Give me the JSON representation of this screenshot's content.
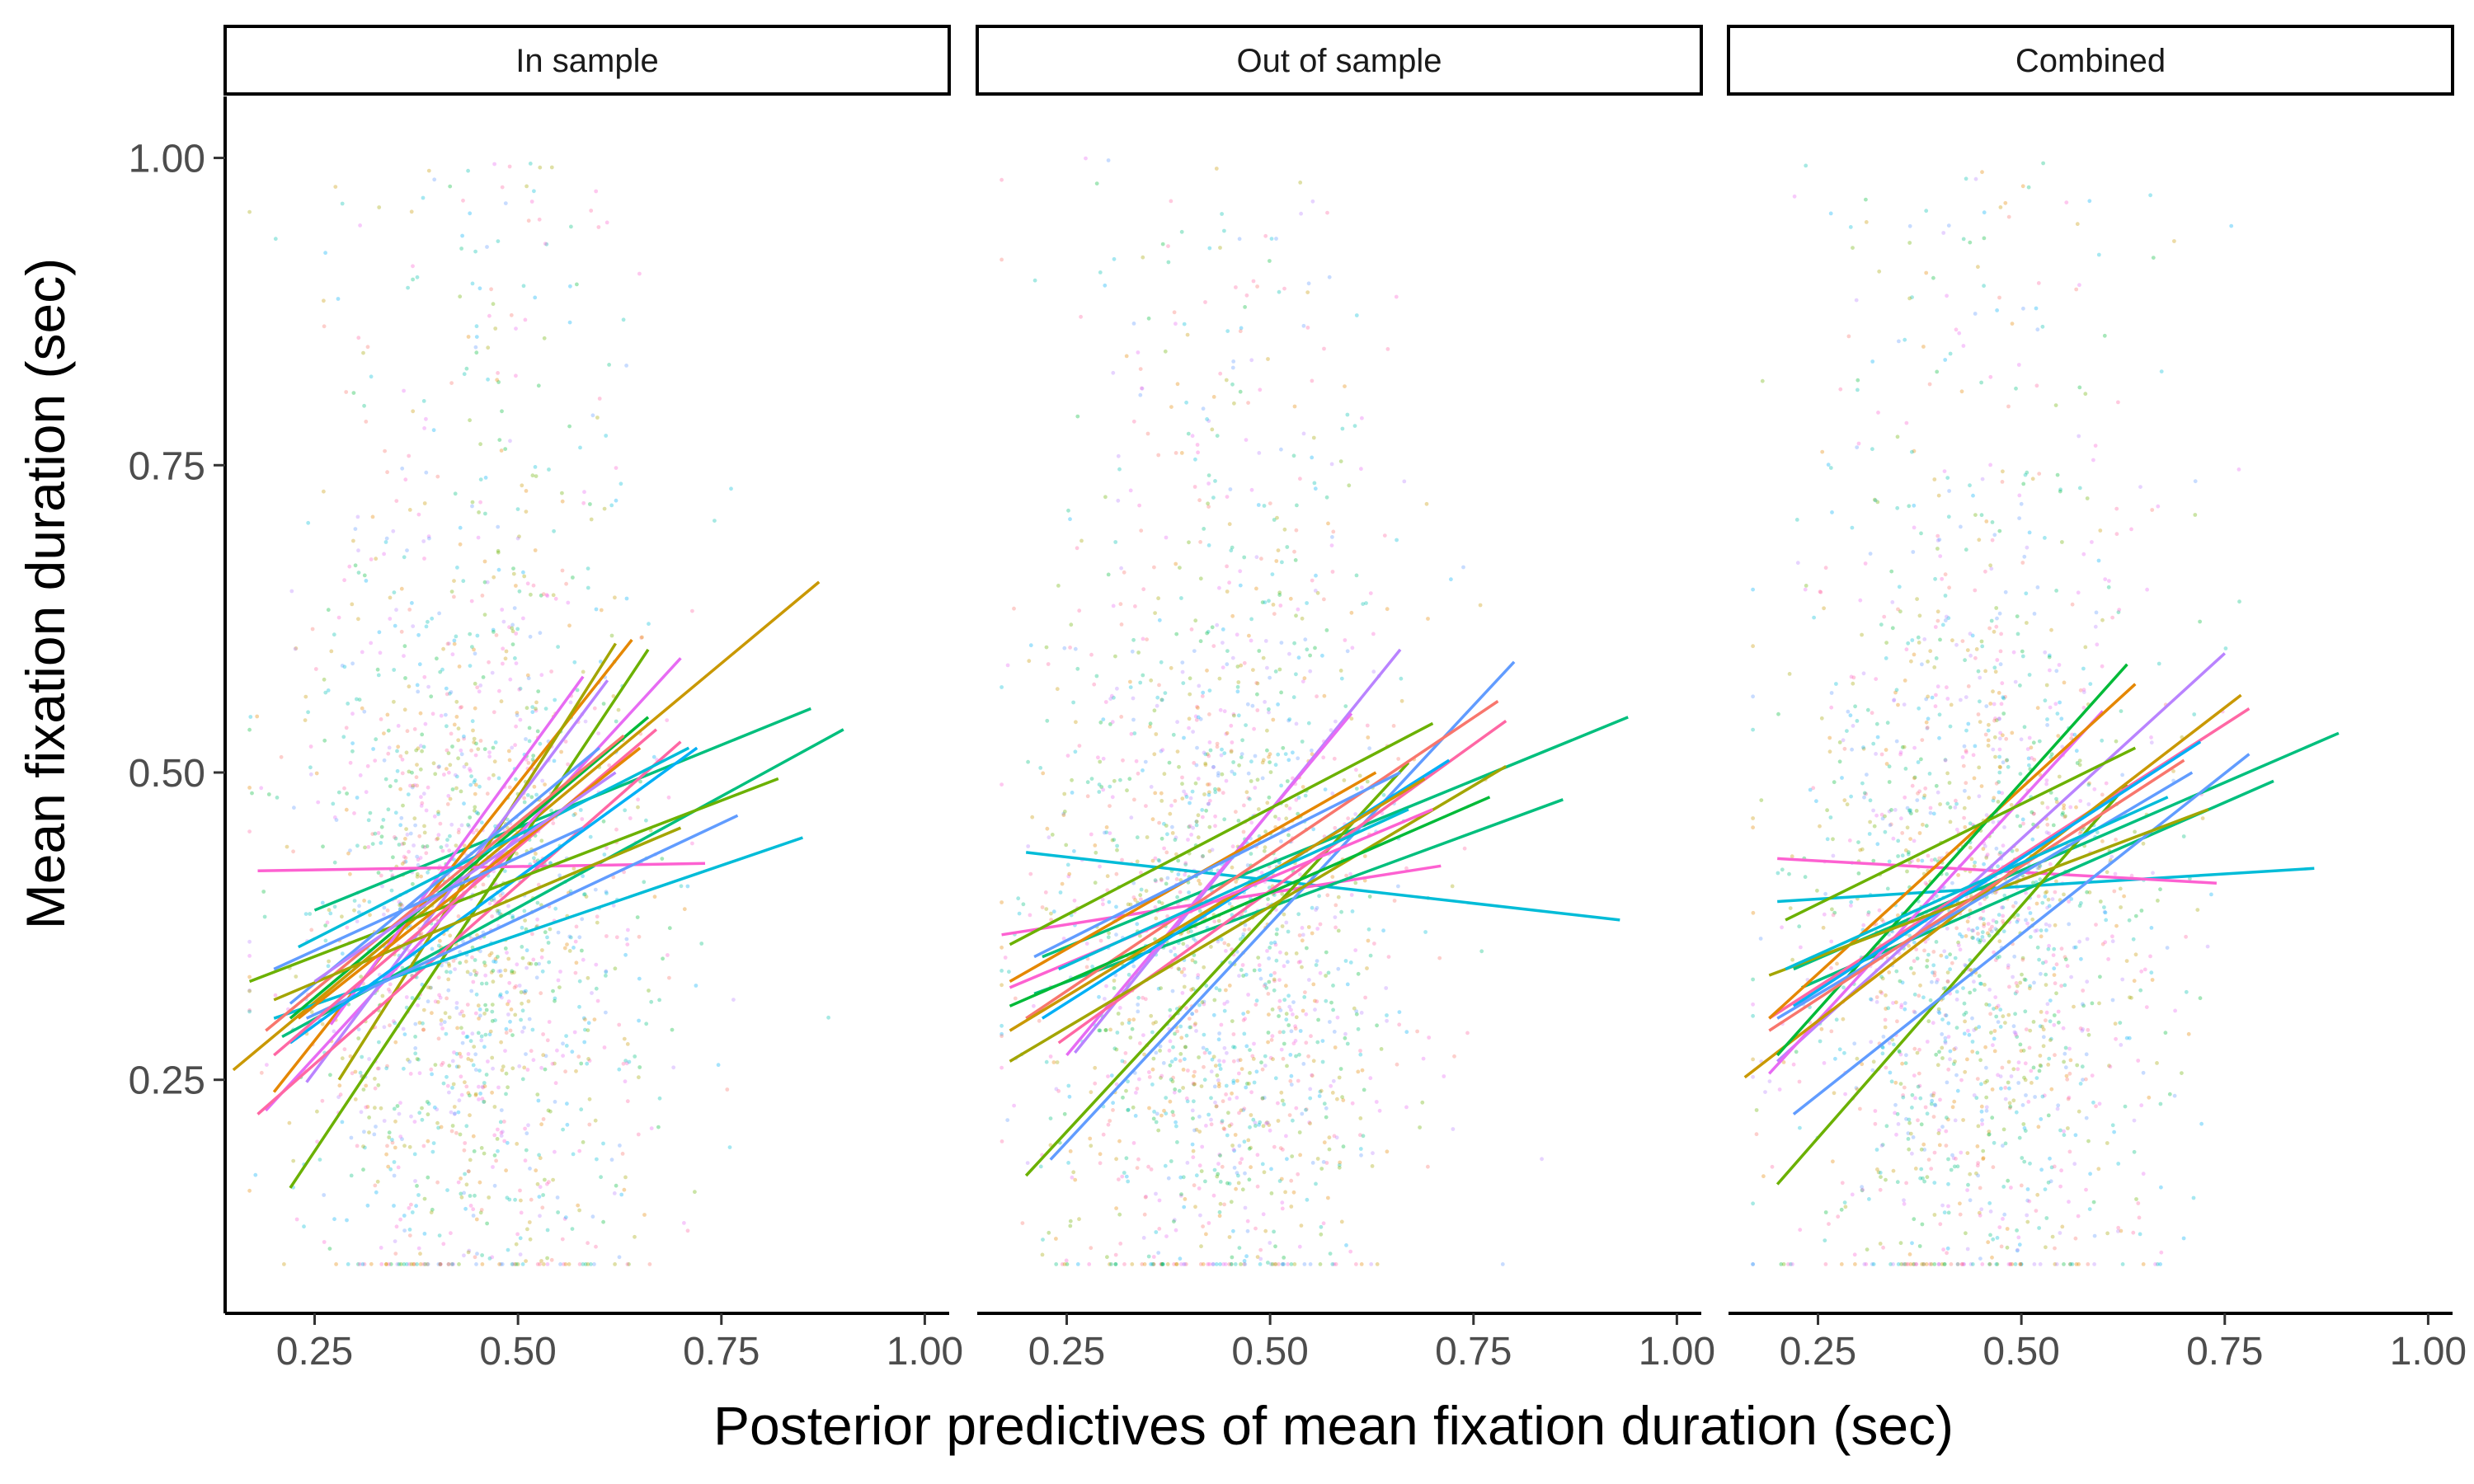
{
  "chart_data": {
    "type": "scatter",
    "xlabel": "Posterior predictives of mean fixation duration (sec)",
    "ylabel": "Mean fixation duration (sec)",
    "xlim": [
      0.14,
      1.03
    ],
    "ylim": [
      0.06,
      1.05
    ],
    "x_ticks": [
      "0.25",
      "0.50",
      "0.75",
      "1.00"
    ],
    "x_tick_values": [
      0.25,
      0.5,
      0.75,
      1.0
    ],
    "y_ticks": [
      "0.25",
      "0.50",
      "0.75",
      "1.00"
    ],
    "y_tick_values": [
      0.25,
      0.5,
      0.75,
      1.0
    ],
    "grid": false,
    "legend": "none",
    "palette": [
      "#F8766D",
      "#E58700",
      "#C99800",
      "#A3A500",
      "#6BB100",
      "#00BA38",
      "#00BF7D",
      "#00C0AF",
      "#00BCD8",
      "#00B0F6",
      "#619CFF",
      "#B983FF",
      "#E76BF3",
      "#FD61D1",
      "#FF67A4"
    ],
    "panels": [
      {
        "title": "In sample",
        "fit_lines": [
          {
            "color": "#C99800",
            "x": [
              0.15,
              0.87
            ],
            "y": [
              0.258,
              0.655
            ]
          },
          {
            "color": "#00BF7D",
            "x": [
              0.21,
              0.9
            ],
            "y": [
              0.285,
              0.535
            ]
          },
          {
            "color": "#00BF7D",
            "x": [
              0.25,
              0.86
            ],
            "y": [
              0.388,
              0.552
            ]
          },
          {
            "color": "#6BB100",
            "x": [
              0.22,
              0.66
            ],
            "y": [
              0.162,
              0.6
            ]
          },
          {
            "color": "#E58700",
            "x": [
              0.2,
              0.64
            ],
            "y": [
              0.24,
              0.608
            ]
          },
          {
            "color": "#A3A500",
            "x": [
              0.28,
              0.62
            ],
            "y": [
              0.25,
              0.605
            ]
          },
          {
            "color": "#E76BF3",
            "x": [
              0.19,
              0.7
            ],
            "y": [
              0.225,
              0.593
            ]
          },
          {
            "color": "#B983FF",
            "x": [
              0.24,
              0.61
            ],
            "y": [
              0.248,
              0.575
            ]
          },
          {
            "color": "#E76BF3",
            "x": [
              0.27,
              0.58
            ],
            "y": [
              0.295,
              0.578
            ]
          },
          {
            "color": "#FF67A4",
            "x": [
              0.18,
              0.7
            ],
            "y": [
              0.222,
              0.525
            ]
          },
          {
            "color": "#FD61D1",
            "x": [
              0.18,
              0.73
            ],
            "y": [
              0.42,
              0.426
            ]
          },
          {
            "color": "#00BCD8",
            "x": [
              0.2,
              0.85
            ],
            "y": [
              0.3,
              0.447
            ]
          },
          {
            "color": "#619CFF",
            "x": [
              0.24,
              0.77
            ],
            "y": [
              0.3,
              0.465
            ]
          },
          {
            "color": "#00B0F6",
            "x": [
              0.22,
              0.72
            ],
            "y": [
              0.28,
              0.52
            ]
          },
          {
            "color": "#6BB100",
            "x": [
              0.17,
              0.82
            ],
            "y": [
              0.33,
              0.495
            ]
          },
          {
            "color": "#00BA38",
            "x": [
              0.22,
              0.66
            ],
            "y": [
              0.3,
              0.545
            ]
          },
          {
            "color": "#619CFF",
            "x": [
              0.22,
              0.6
            ],
            "y": [
              0.312,
              0.52
            ]
          },
          {
            "color": "#00BCD8",
            "x": [
              0.23,
              0.71
            ],
            "y": [
              0.358,
              0.52
            ]
          },
          {
            "color": "#F8766D",
            "x": [
              0.19,
              0.63
            ],
            "y": [
              0.29,
              0.53
            ]
          },
          {
            "color": "#FF67A4",
            "x": [
              0.2,
              0.67
            ],
            "y": [
              0.27,
              0.535
            ]
          },
          {
            "color": "#A3A500",
            "x": [
              0.2,
              0.7
            ],
            "y": [
              0.315,
              0.455
            ]
          },
          {
            "color": "#E58700",
            "x": [
              0.23,
              0.65
            ],
            "y": [
              0.3,
              0.52
            ]
          },
          {
            "color": "#B983FF",
            "x": [
              0.25,
              0.62
            ],
            "y": [
              0.33,
              0.5
            ]
          },
          {
            "color": "#619CFF",
            "x": [
              0.2,
              0.58
            ],
            "y": [
              0.34,
              0.455
            ]
          }
        ]
      },
      {
        "title": "Out of sample",
        "fit_lines": [
          {
            "color": "#00BCD8",
            "x": [
              0.2,
              0.93
            ],
            "y": [
              0.435,
              0.38
            ]
          },
          {
            "color": "#FD61D1",
            "x": [
              0.17,
              0.71
            ],
            "y": [
              0.368,
              0.424
            ]
          },
          {
            "color": "#00BF7D",
            "x": [
              0.22,
              0.94
            ],
            "y": [
              0.35,
              0.545
            ]
          },
          {
            "color": "#00BF7D",
            "x": [
              0.21,
              0.86
            ],
            "y": [
              0.32,
              0.478
            ]
          },
          {
            "color": "#6BB100",
            "x": [
              0.2,
              0.67
            ],
            "y": [
              0.172,
              0.508
            ]
          },
          {
            "color": "#619CFF",
            "x": [
              0.23,
              0.8
            ],
            "y": [
              0.185,
              0.59
            ]
          },
          {
            "color": "#B983FF",
            "x": [
              0.26,
              0.66
            ],
            "y": [
              0.272,
              0.6
            ]
          },
          {
            "color": "#E76BF3",
            "x": [
              0.25,
              0.6
            ],
            "y": [
              0.27,
              0.548
            ]
          },
          {
            "color": "#FF67A4",
            "x": [
              0.24,
              0.79
            ],
            "y": [
              0.28,
              0.542
            ]
          },
          {
            "color": "#F8766D",
            "x": [
              0.2,
              0.78
            ],
            "y": [
              0.3,
              0.558
            ]
          },
          {
            "color": "#A3A500",
            "x": [
              0.18,
              0.79
            ],
            "y": [
              0.265,
              0.505
            ]
          },
          {
            "color": "#00BA38",
            "x": [
              0.18,
              0.77
            ],
            "y": [
              0.31,
              0.48
            ]
          },
          {
            "color": "#00B0F6",
            "x": [
              0.22,
              0.72
            ],
            "y": [
              0.3,
              0.51
            ]
          },
          {
            "color": "#E58700",
            "x": [
              0.18,
              0.63
            ],
            "y": [
              0.33,
              0.5
            ]
          },
          {
            "color": "#6BB100",
            "x": [
              0.18,
              0.7
            ],
            "y": [
              0.36,
              0.54
            ]
          },
          {
            "color": "#619CFF",
            "x": [
              0.21,
              0.66
            ],
            "y": [
              0.35,
              0.5
            ]
          },
          {
            "color": "#C99800",
            "x": [
              0.18,
              0.69
            ],
            "y": [
              0.29,
              0.495
            ]
          },
          {
            "color": "#FD61D1",
            "x": [
              0.18,
              0.7
            ],
            "y": [
              0.325,
              0.47
            ]
          },
          {
            "color": "#00BCD8",
            "x": [
              0.24,
              0.67
            ],
            "y": [
              0.34,
              0.47
            ]
          }
        ]
      },
      {
        "title": "Combined",
        "fit_lines": [
          {
            "color": "#00BCD8",
            "x": [
              0.2,
              0.86
            ],
            "y": [
              0.395,
              0.422
            ]
          },
          {
            "color": "#FD61D1",
            "x": [
              0.2,
              0.74
            ],
            "y": [
              0.43,
              0.41
            ]
          },
          {
            "color": "#00BF7D",
            "x": [
              0.22,
              0.89
            ],
            "y": [
              0.34,
              0.532
            ]
          },
          {
            "color": "#00BF7D",
            "x": [
              0.23,
              0.81
            ],
            "y": [
              0.325,
              0.493
            ]
          },
          {
            "color": "#6BB100",
            "x": [
              0.2,
              0.63
            ],
            "y": [
              0.165,
              0.49
            ]
          },
          {
            "color": "#619CFF",
            "x": [
              0.22,
              0.78
            ],
            "y": [
              0.222,
              0.515
            ]
          },
          {
            "color": "#B983FF",
            "x": [
              0.2,
              0.75
            ],
            "y": [
              0.265,
              0.597
            ]
          },
          {
            "color": "#E76BF3",
            "x": [
              0.19,
              0.6
            ],
            "y": [
              0.255,
              0.55
            ]
          },
          {
            "color": "#FF67A4",
            "x": [
              0.19,
              0.78
            ],
            "y": [
              0.3,
              0.552
            ]
          },
          {
            "color": "#C99800",
            "x": [
              0.16,
              0.77
            ],
            "y": [
              0.252,
              0.563
            ]
          },
          {
            "color": "#E58700",
            "x": [
              0.19,
              0.64
            ],
            "y": [
              0.3,
              0.572
            ]
          },
          {
            "color": "#00BA38",
            "x": [
              0.2,
              0.63
            ],
            "y": [
              0.27,
              0.588
            ]
          },
          {
            "color": "#00B0F6",
            "x": [
              0.22,
              0.72
            ],
            "y": [
              0.31,
              0.525
            ]
          },
          {
            "color": "#A3A500",
            "x": [
              0.19,
              0.73
            ],
            "y": [
              0.335,
              0.47
            ]
          },
          {
            "color": "#6BB100",
            "x": [
              0.21,
              0.64
            ],
            "y": [
              0.38,
              0.52
            ]
          },
          {
            "color": "#619CFF",
            "x": [
              0.2,
              0.71
            ],
            "y": [
              0.3,
              0.5
            ]
          },
          {
            "color": "#F8766D",
            "x": [
              0.19,
              0.7
            ],
            "y": [
              0.29,
              0.51
            ]
          },
          {
            "color": "#00BCD8",
            "x": [
              0.21,
              0.68
            ],
            "y": [
              0.34,
              0.48
            ]
          }
        ]
      }
    ]
  }
}
